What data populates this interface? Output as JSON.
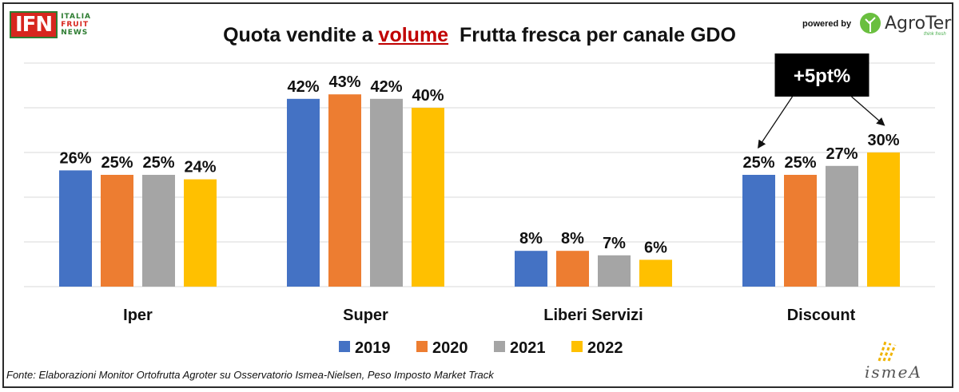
{
  "header": {
    "ifn_logo": {
      "mark": "IFN",
      "line1": "ITALIA",
      "line2": "FRUIT",
      "line3": "NEWS"
    },
    "title_part1": "Quota vendite a ",
    "title_highlight": "volume",
    "title_part2": "  Frutta fresca per canale GDO",
    "powered_by": "powered by",
    "agroter_logo": {
      "brand": "AgroTer",
      "tagline": "think fresh"
    }
  },
  "footer": {
    "source": "Fonte: Elaborazioni Monitor Ortofrutta Agroter su Osservatorio Ismea-Nielsen, Peso Imposto Market Track",
    "ismea_logo": "ismeA"
  },
  "colors": {
    "2019": "#4472c4",
    "2020": "#ed7d31",
    "2021": "#a5a5a5",
    "2022": "#ffc000",
    "gridline": "#d9d9d9",
    "title_highlight": "#c00000"
  },
  "chart_data": {
    "type": "bar",
    "title": "Quota vendite a volume  Frutta fresca per canale GDO",
    "categories": [
      "Iper",
      "Super",
      "Liberi Servizi",
      "Discount"
    ],
    "series": [
      {
        "name": "2019",
        "values": [
          26,
          42,
          8,
          25
        ],
        "labels": [
          "26%",
          "42%",
          "8%",
          "25%"
        ]
      },
      {
        "name": "2020",
        "values": [
          25,
          43,
          8,
          25
        ],
        "labels": [
          "25%",
          "43%",
          "8%",
          "25%"
        ]
      },
      {
        "name": "2021",
        "values": [
          25,
          42,
          7,
          27
        ],
        "labels": [
          "25%",
          "42%",
          "7%",
          "27%"
        ]
      },
      {
        "name": "2022",
        "values": [
          24,
          40,
          6,
          30
        ],
        "labels": [
          "24%",
          "40%",
          "6%",
          "30%"
        ]
      }
    ],
    "ylim": [
      0,
      50
    ],
    "grid": true,
    "legend_position": "bottom",
    "annotation": {
      "text": "+5pt%",
      "category": "Discount",
      "from_series": "2019",
      "to_series": "2022"
    }
  }
}
